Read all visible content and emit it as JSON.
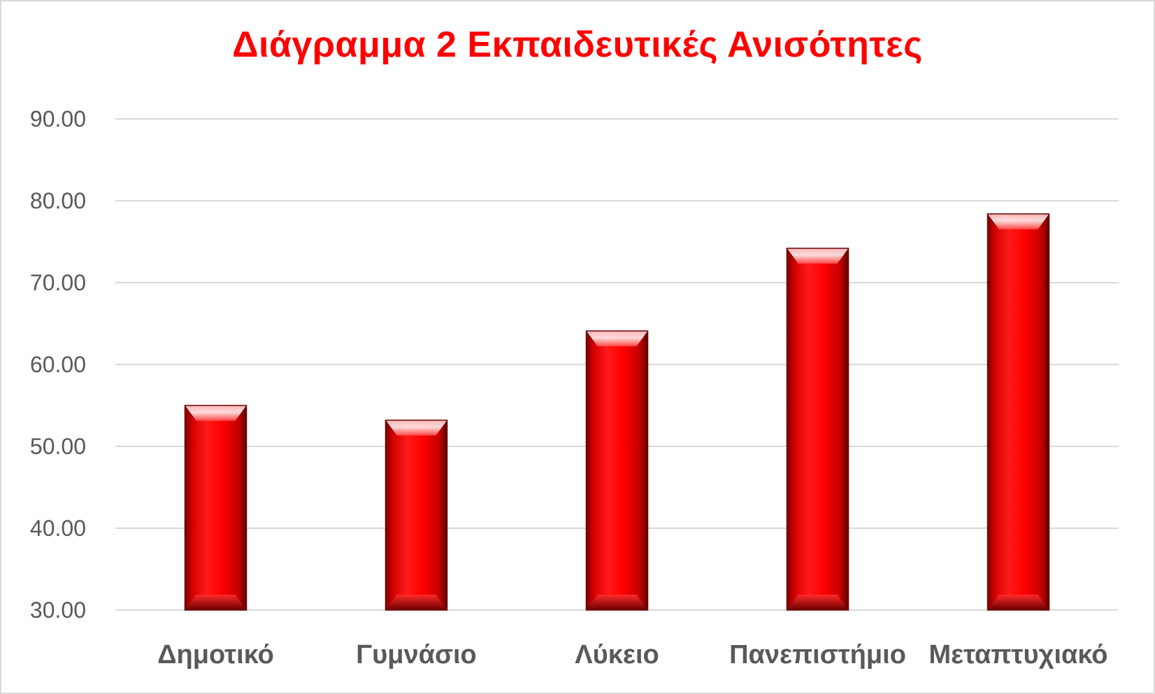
{
  "chart_data": {
    "type": "bar",
    "title": "Διάγραμμα 2 Εκπαιδευτικές Ανισότητες",
    "categories": [
      "Δημοτικό",
      "Γυμνάσιο",
      "Λύκειο",
      "Πανεπιστήμιο",
      "Μεταπτυχιακό"
    ],
    "values": [
      55.0,
      53.2,
      64.1,
      74.2,
      78.4
    ],
    "ylim": [
      30,
      90
    ],
    "yticks": [
      "30.00",
      "40.00",
      "50.00",
      "60.00",
      "70.00",
      "80.00",
      "90.00"
    ],
    "xlabel": "",
    "ylabel": "",
    "grid": true,
    "legend": "none",
    "colors": {
      "bar": "#ff0000",
      "bar_dark": "#8b0000",
      "title": "#ff0000",
      "gridline": "#d9d9d9",
      "tick_text": "#595959"
    }
  }
}
